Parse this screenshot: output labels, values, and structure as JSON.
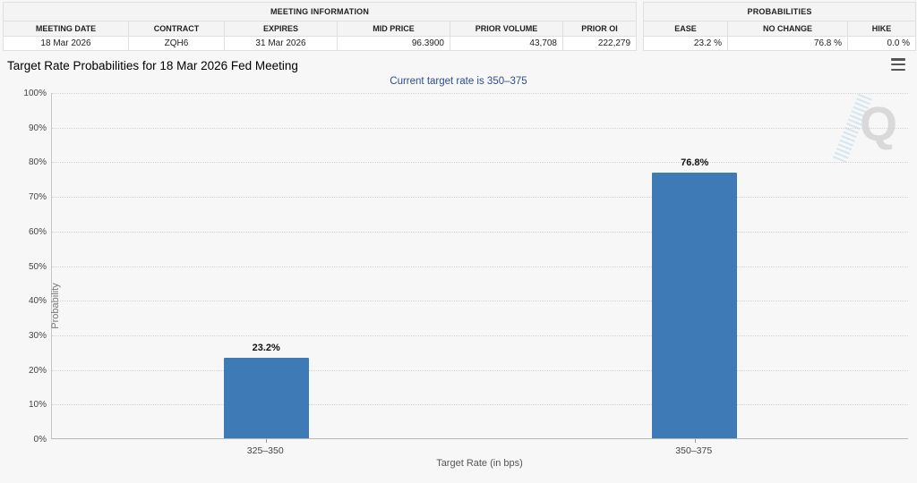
{
  "meeting_information": {
    "title": "MEETING INFORMATION",
    "columns": [
      "MEETING DATE",
      "CONTRACT",
      "EXPIRES",
      "MID PRICE",
      "PRIOR VOLUME",
      "PRIOR OI"
    ],
    "values": [
      "18 Mar 2026",
      "ZQH6",
      "31 Mar 2026",
      "96.3900",
      "43,708",
      "222,279"
    ]
  },
  "probabilities": {
    "title": "PROBABILITIES",
    "columns": [
      "EASE",
      "NO CHANGE",
      "HIKE"
    ],
    "values": [
      "23.2 %",
      "76.8 %",
      "0.0 %"
    ]
  },
  "chart_data": {
    "type": "bar",
    "title": "Target Rate Probabilities for 18 Mar 2026 Fed Meeting",
    "subtitle": "Current target rate is 350–375",
    "categories": [
      "325–350",
      "350–375"
    ],
    "values": [
      23.2,
      76.8
    ],
    "data_labels": [
      "23.2%",
      "76.8%"
    ],
    "xlabel": "Target Rate (in bps)",
    "ylabel": "Probability",
    "ylim": [
      0,
      100
    ],
    "ytick_step": 10,
    "ytick_suffix": "%",
    "grid": "dotted horizontal",
    "legend": "none",
    "bar_color": "#3e7ab5"
  },
  "icons": {
    "menu": "hamburger-icon",
    "watermark_letter": "Q"
  },
  "colors": {
    "bar": "#3e7ab5",
    "subtitle": "#2d4d8c",
    "background": "#f7f7f7"
  }
}
